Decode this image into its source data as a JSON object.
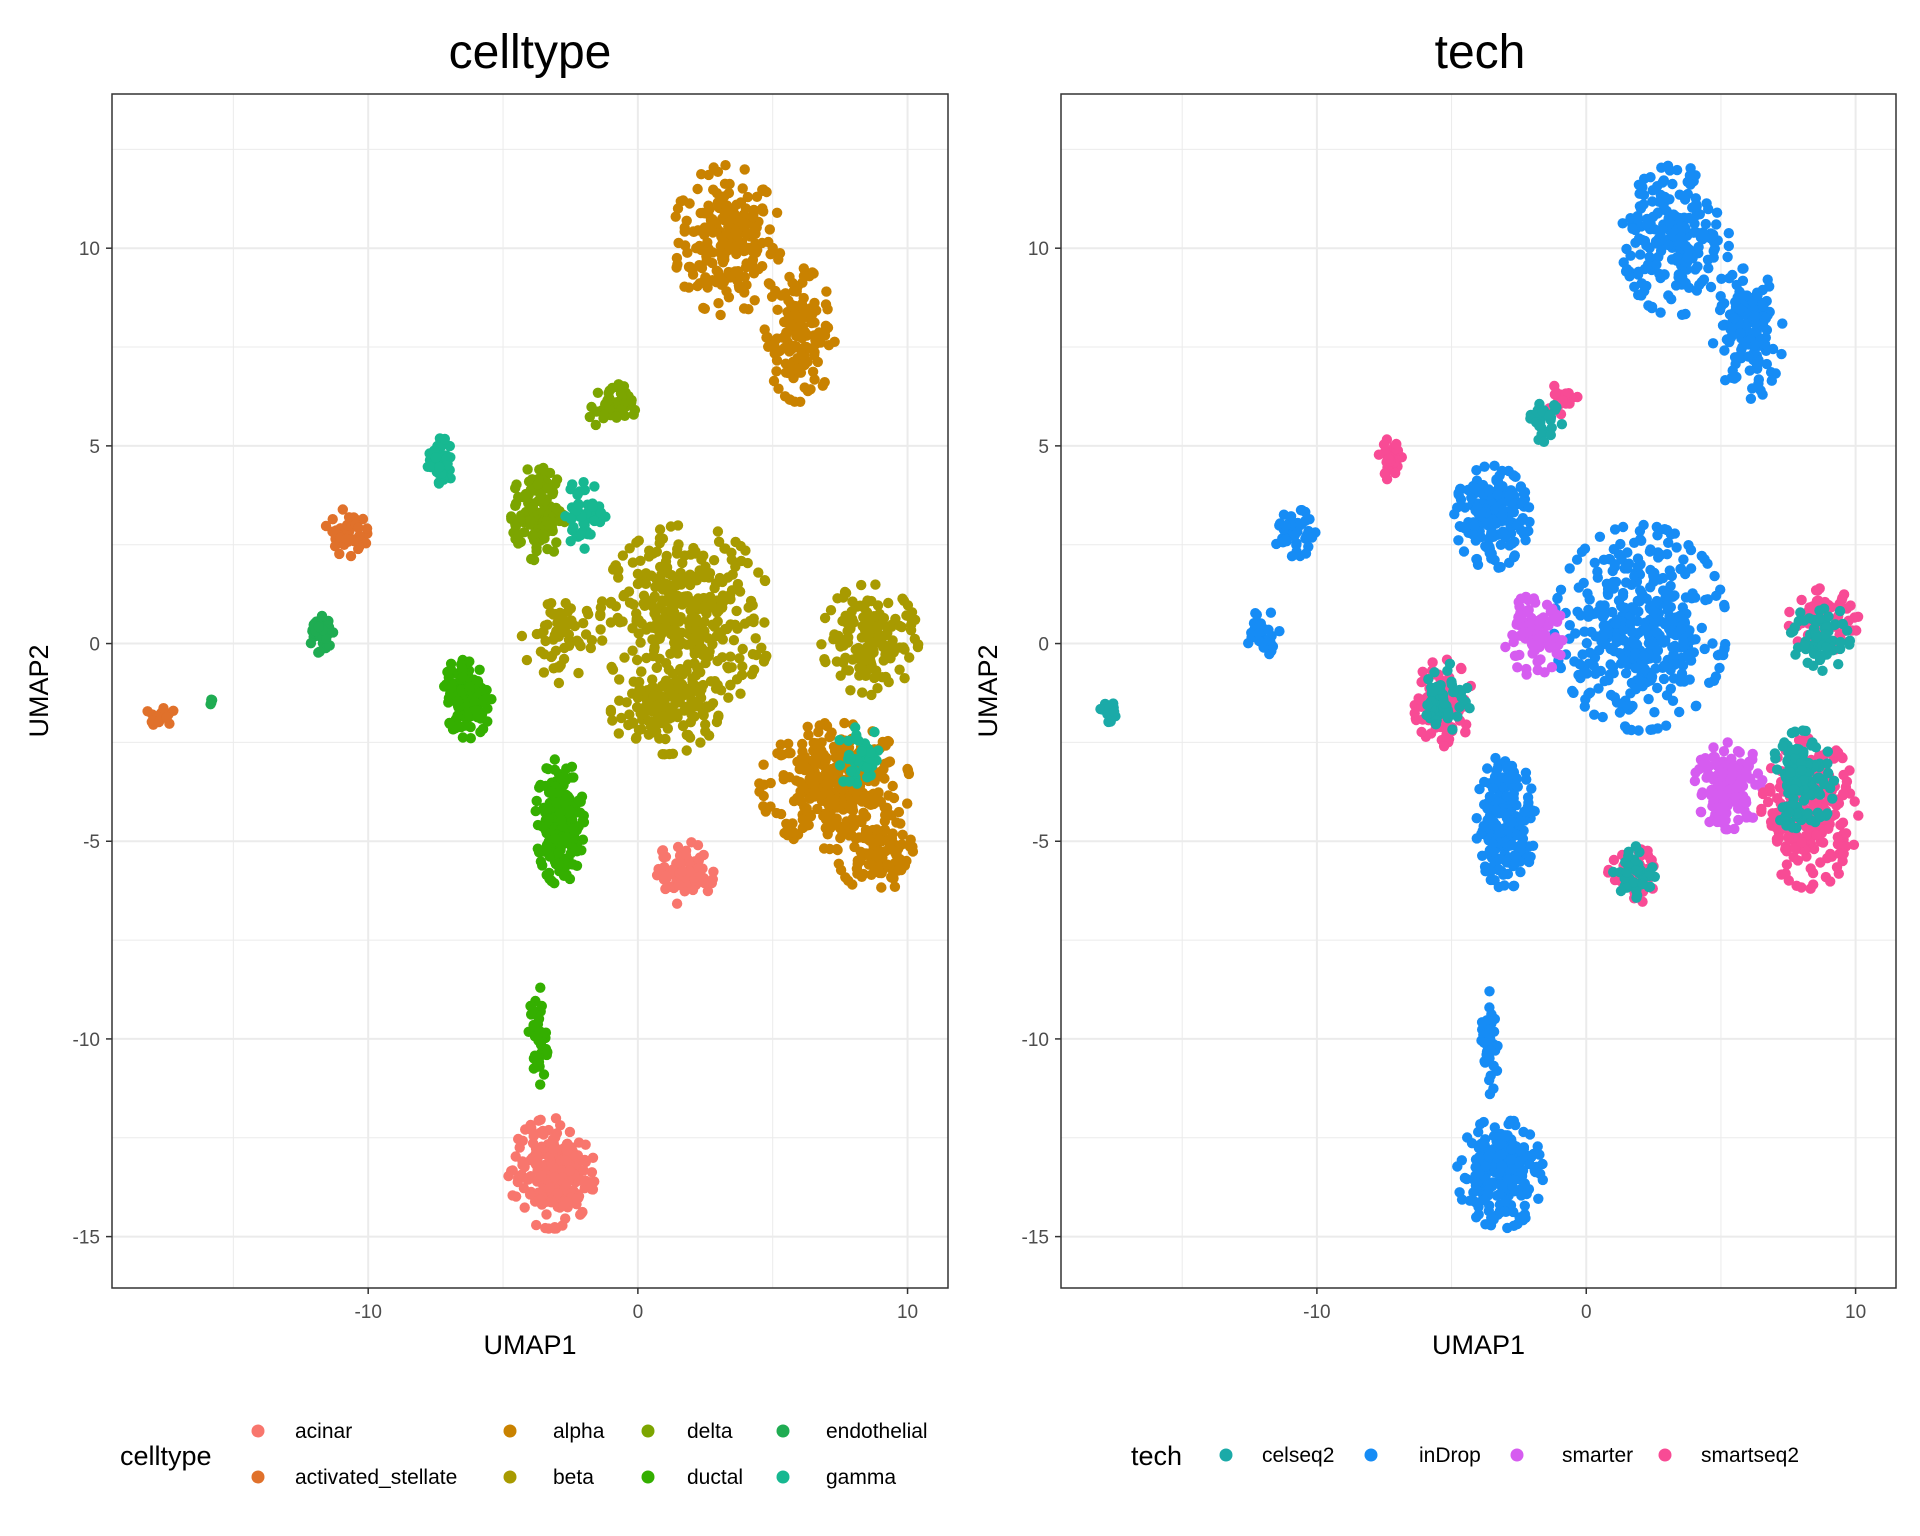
{
  "chart_data": [
    {
      "type": "scatter",
      "title": "celltype",
      "xlabel": "UMAP1",
      "ylabel": "UMAP2",
      "xlim": [
        -19.5,
        11.5
      ],
      "ylim": [
        -16.3,
        13.9
      ],
      "xticks": [
        -10,
        0,
        10
      ],
      "xtick_labels": [
        "-10",
        "0",
        "10"
      ],
      "yticks": [
        -15,
        -10,
        -5,
        0,
        5,
        10
      ],
      "ytick_labels": [
        "-15",
        "-10",
        "-5",
        "0",
        "5",
        "10"
      ],
      "grid": true,
      "legend": {
        "title": "celltype",
        "placement": "bottom",
        "entries": [
          {
            "label": "acinar",
            "color": "#F8766D"
          },
          {
            "label": "activated_stellate",
            "color": "#E0712B"
          },
          {
            "label": "alpha",
            "color": "#C98200"
          },
          {
            "label": "beta",
            "color": "#A89A00"
          },
          {
            "label": "delta",
            "color": "#7CA500"
          },
          {
            "label": "ductal",
            "color": "#34AF00"
          },
          {
            "label": "endothelial",
            "color": "#1FAC52"
          },
          {
            "label": "gamma",
            "color": "#17B891"
          }
        ]
      },
      "clusters": [
        {
          "series": "alpha",
          "cx": 3.3,
          "cy": 10.2,
          "rx": 2.0,
          "ry": 1.9,
          "n": 220
        },
        {
          "series": "alpha",
          "cx": 6.0,
          "cy": 7.8,
          "rx": 1.3,
          "ry": 1.7,
          "n": 140
        },
        {
          "series": "alpha",
          "cx": 7.3,
          "cy": -3.6,
          "rx": 2.8,
          "ry": 1.6,
          "n": 320
        },
        {
          "series": "alpha",
          "cx": 8.8,
          "cy": -5.3,
          "rx": 1.4,
          "ry": 1.0,
          "n": 100
        },
        {
          "series": "beta",
          "cx": 1.8,
          "cy": 0.6,
          "rx": 3.2,
          "ry": 2.4,
          "n": 380
        },
        {
          "series": "beta",
          "cx": 1.0,
          "cy": -1.7,
          "rx": 2.0,
          "ry": 1.1,
          "n": 140
        },
        {
          "series": "beta",
          "cx": 8.6,
          "cy": 0.1,
          "rx": 1.8,
          "ry": 1.4,
          "n": 150
        },
        {
          "series": "beta",
          "cx": -3.0,
          "cy": 0.2,
          "rx": 1.3,
          "ry": 1.2,
          "n": 60
        },
        {
          "series": "delta",
          "cx": -1.0,
          "cy": 6.0,
          "rx": 0.9,
          "ry": 0.6,
          "n": 45
        },
        {
          "series": "delta",
          "cx": -3.7,
          "cy": 3.3,
          "rx": 1.0,
          "ry": 1.2,
          "n": 130
        },
        {
          "series": "ductal",
          "cx": -6.3,
          "cy": -1.3,
          "rx": 0.9,
          "ry": 1.1,
          "n": 160
        },
        {
          "series": "ductal",
          "cx": -2.9,
          "cy": -4.5,
          "rx": 0.9,
          "ry": 1.6,
          "n": 200
        },
        {
          "series": "ductal",
          "cx": -3.7,
          "cy": -10.0,
          "rx": 0.35,
          "ry": 1.4,
          "n": 40
        },
        {
          "series": "acinar",
          "cx": -3.2,
          "cy": -13.4,
          "rx": 1.6,
          "ry": 1.4,
          "n": 220
        },
        {
          "series": "acinar",
          "cx": 1.7,
          "cy": -5.8,
          "rx": 1.1,
          "ry": 0.8,
          "n": 80
        },
        {
          "series": "gamma",
          "cx": -7.3,
          "cy": 4.6,
          "rx": 0.5,
          "ry": 0.6,
          "n": 45
        },
        {
          "series": "gamma",
          "cx": -2.0,
          "cy": 3.3,
          "rx": 0.8,
          "ry": 0.9,
          "n": 50
        },
        {
          "series": "gamma",
          "cx": 8.3,
          "cy": -2.9,
          "rx": 1.0,
          "ry": 0.8,
          "n": 40
        },
        {
          "series": "activated_stellate",
          "cx": -10.8,
          "cy": 2.8,
          "rx": 0.8,
          "ry": 0.6,
          "n": 45
        },
        {
          "series": "activated_stellate",
          "cx": -17.7,
          "cy": -1.8,
          "rx": 0.5,
          "ry": 0.3,
          "n": 18
        },
        {
          "series": "endothelial",
          "cx": -11.8,
          "cy": 0.3,
          "rx": 0.5,
          "ry": 0.6,
          "n": 35
        },
        {
          "series": "endothelial",
          "cx": -15.8,
          "cy": -1.5,
          "rx": 0.2,
          "ry": 0.15,
          "n": 4
        }
      ]
    },
    {
      "type": "scatter",
      "title": "tech",
      "xlabel": "UMAP1",
      "ylabel": "UMAP2",
      "xlim": [
        -19.5,
        11.5
      ],
      "ylim": [
        -16.3,
        13.9
      ],
      "xticks": [
        -10,
        0,
        10
      ],
      "xtick_labels": [
        "-10",
        "0",
        "10"
      ],
      "yticks": [
        -15,
        -10,
        -5,
        0,
        5,
        10
      ],
      "ytick_labels": [
        "-15",
        "-10",
        "-5",
        "0",
        "5",
        "10"
      ],
      "grid": true,
      "legend": {
        "title": "tech",
        "placement": "bottom",
        "entries": [
          {
            "label": "celseq2",
            "color": "#1BAAA8"
          },
          {
            "label": "inDrop",
            "color": "#168CF5"
          },
          {
            "label": "smarter",
            "color": "#D65CF0"
          },
          {
            "label": "smartseq2",
            "color": "#F84B95"
          }
        ]
      },
      "clusters": [
        {
          "series": "inDrop",
          "cx": 3.3,
          "cy": 10.2,
          "rx": 2.0,
          "ry": 1.9,
          "n": 220
        },
        {
          "series": "inDrop",
          "cx": 6.0,
          "cy": 7.8,
          "rx": 1.3,
          "ry": 1.7,
          "n": 140
        },
        {
          "series": "inDrop",
          "cx": 2.0,
          "cy": 0.4,
          "rx": 3.2,
          "ry": 2.6,
          "n": 420
        },
        {
          "series": "inDrop",
          "cx": -3.5,
          "cy": 3.2,
          "rx": 1.4,
          "ry": 1.3,
          "n": 180
        },
        {
          "series": "inDrop",
          "cx": -10.8,
          "cy": 2.8,
          "rx": 0.8,
          "ry": 0.6,
          "n": 45
        },
        {
          "series": "inDrop",
          "cx": -12.0,
          "cy": 0.3,
          "rx": 0.7,
          "ry": 0.6,
          "n": 35
        },
        {
          "series": "inDrop",
          "cx": -3.0,
          "cy": -4.5,
          "rx": 1.1,
          "ry": 1.7,
          "n": 200
        },
        {
          "series": "inDrop",
          "cx": -3.6,
          "cy": -10.0,
          "rx": 0.35,
          "ry": 1.4,
          "n": 40
        },
        {
          "series": "inDrop",
          "cx": -3.2,
          "cy": -13.4,
          "rx": 1.6,
          "ry": 1.4,
          "n": 220
        },
        {
          "series": "smarter",
          "cx": -2.0,
          "cy": 0.2,
          "rx": 1.2,
          "ry": 1.0,
          "n": 90
        },
        {
          "series": "smarter",
          "cx": 5.3,
          "cy": -3.6,
          "rx": 1.3,
          "ry": 1.1,
          "n": 150
        },
        {
          "series": "smartseq2",
          "cx": -5.3,
          "cy": -1.5,
          "rx": 1.1,
          "ry": 1.1,
          "n": 110
        },
        {
          "series": "smartseq2",
          "cx": 8.3,
          "cy": -4.3,
          "rx": 1.8,
          "ry": 1.9,
          "n": 240
        },
        {
          "series": "smartseq2",
          "cx": 8.8,
          "cy": 0.6,
          "rx": 1.3,
          "ry": 0.8,
          "n": 70
        },
        {
          "series": "smartseq2",
          "cx": 1.9,
          "cy": -5.9,
          "rx": 1.1,
          "ry": 0.7,
          "n": 50
        },
        {
          "series": "smartseq2",
          "cx": -7.2,
          "cy": 4.7,
          "rx": 0.5,
          "ry": 0.6,
          "n": 30
        },
        {
          "series": "smartseq2",
          "cx": -0.9,
          "cy": 6.2,
          "rx": 0.6,
          "ry": 0.4,
          "n": 25
        },
        {
          "series": "celseq2",
          "cx": 8.0,
          "cy": -3.5,
          "rx": 1.2,
          "ry": 1.3,
          "n": 120
        },
        {
          "series": "celseq2",
          "cx": 8.7,
          "cy": 0.2,
          "rx": 1.1,
          "ry": 0.9,
          "n": 60
        },
        {
          "series": "celseq2",
          "cx": -5.2,
          "cy": -1.4,
          "rx": 0.9,
          "ry": 0.9,
          "n": 50
        },
        {
          "series": "celseq2",
          "cx": 1.8,
          "cy": -5.8,
          "rx": 0.9,
          "ry": 0.7,
          "n": 40
        },
        {
          "series": "celseq2",
          "cx": -1.5,
          "cy": 5.6,
          "rx": 0.6,
          "ry": 0.5,
          "n": 30
        },
        {
          "series": "celseq2",
          "cx": -17.7,
          "cy": -1.8,
          "rx": 0.4,
          "ry": 0.3,
          "n": 16
        }
      ]
    }
  ]
}
